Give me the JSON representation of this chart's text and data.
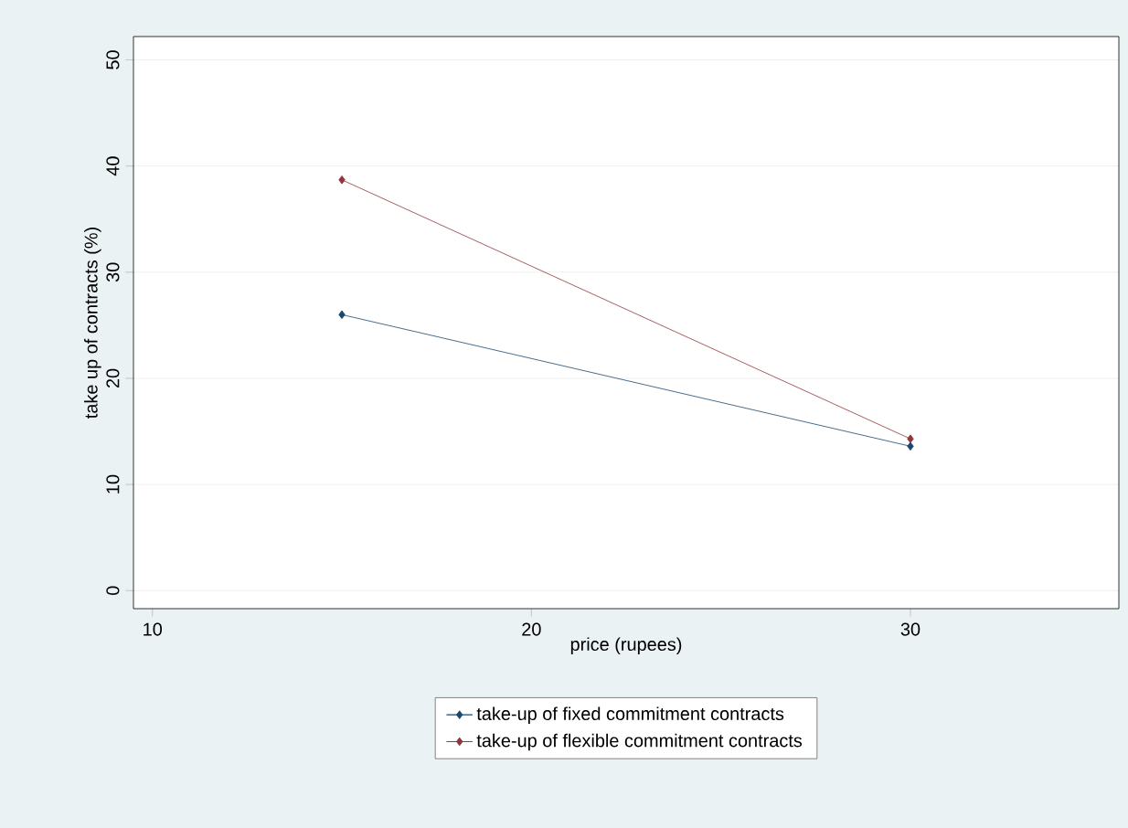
{
  "chart_data": {
    "type": "line",
    "xlabel": "price (rupees)",
    "ylabel": "take up of contracts (%)",
    "x": [
      15,
      30
    ],
    "series": [
      {
        "name": "take-up of fixed commitment contracts",
        "color": "#1a476f",
        "values": [
          26.0,
          13.6
        ]
      },
      {
        "name": "take-up of flexible commitment contracts",
        "color": "#90353b",
        "values": [
          38.7,
          14.3
        ]
      }
    ],
    "xlim": [
      9.5,
      35.5
    ],
    "xticks": [
      10,
      20,
      30
    ],
    "ylim": [
      -1.7,
      52.2
    ],
    "yticks": [
      0,
      10,
      20,
      30,
      40,
      50
    ],
    "grid": "y",
    "legend": "bottom",
    "marker": "diamond",
    "line_style": "solid"
  }
}
